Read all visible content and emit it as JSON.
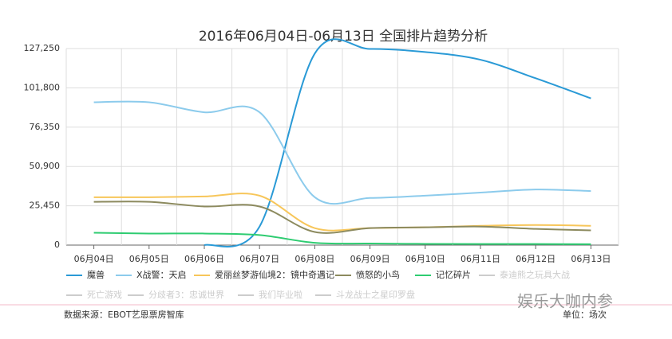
{
  "chart_data": {
    "type": "line",
    "title": "2016年06月04日-06月13日 全国排片趋势分析",
    "categories": [
      "06月04日",
      "06月05日",
      "06月06日",
      "06月07日",
      "06月08日",
      "06月09日",
      "06月10日",
      "06月11日",
      "06月12日",
      "06月13日"
    ],
    "series": [
      {
        "name": "魔兽",
        "color": "#2a9ad6",
        "values": [
          null,
          null,
          0,
          12000,
          124000,
          127000,
          125000,
          120000,
          108000,
          95000
        ]
      },
      {
        "name": "X战警：天启",
        "color": "#8ccbec",
        "values": [
          92500,
          92500,
          86000,
          86000,
          31000,
          30500,
          32000,
          34000,
          36000,
          35000
        ]
      },
      {
        "name": "爱丽丝梦游仙境2：镜中奇遇记",
        "color": "#f7c65a",
        "values": [
          31000,
          31000,
          31500,
          32000,
          11000,
          11000,
          11500,
          12500,
          13000,
          12500
        ]
      },
      {
        "name": "愤怒的小鸟",
        "color": "#8c8a5e",
        "values": [
          28000,
          28000,
          25000,
          25000,
          8500,
          11000,
          11500,
          12000,
          10500,
          9500
        ]
      },
      {
        "name": "记忆碎片",
        "color": "#2ecc71",
        "values": [
          8000,
          7500,
          7500,
          6500,
          1500,
          1000,
          800,
          700,
          700,
          600
        ]
      },
      {
        "name": "泰迪熊之玩具大战",
        "color": "#cccccc",
        "visible": false,
        "values": [
          null,
          null,
          null,
          null,
          null,
          null,
          null,
          null,
          null,
          null
        ]
      },
      {
        "name": "死亡游戏",
        "color": "#cccccc",
        "visible": false,
        "values": [
          null,
          null,
          null,
          null,
          null,
          null,
          null,
          null,
          null,
          null
        ]
      },
      {
        "name": "分歧者3：忠诚世界",
        "color": "#cccccc",
        "visible": false,
        "values": [
          null,
          null,
          null,
          null,
          null,
          null,
          null,
          null,
          null,
          null
        ]
      },
      {
        "name": "我们毕业啦",
        "color": "#cccccc",
        "visible": false,
        "values": [
          null,
          null,
          null,
          null,
          null,
          null,
          null,
          null,
          null,
          null
        ]
      },
      {
        "name": "斗龙战士之星印罗盘",
        "color": "#cccccc",
        "visible": false,
        "values": [
          null,
          null,
          null,
          null,
          null,
          null,
          null,
          null,
          null,
          null
        ]
      }
    ],
    "ylim": [
      0,
      127250
    ],
    "yticks": [
      0,
      {
        "value": 25450,
        "label": "25,450"
      },
      {
        "value": 50900,
        "label": "50,900"
      },
      {
        "value": 76350,
        "label": "76,350"
      },
      {
        "value": 101800,
        "label": "101,800"
      },
      {
        "value": 127250,
        "label": "127,250"
      }
    ],
    "grid": true,
    "source": "数据来源：EBOT艺恩票房智库",
    "unit": "单位：场次",
    "watermark": "娱乐大咖内参"
  }
}
